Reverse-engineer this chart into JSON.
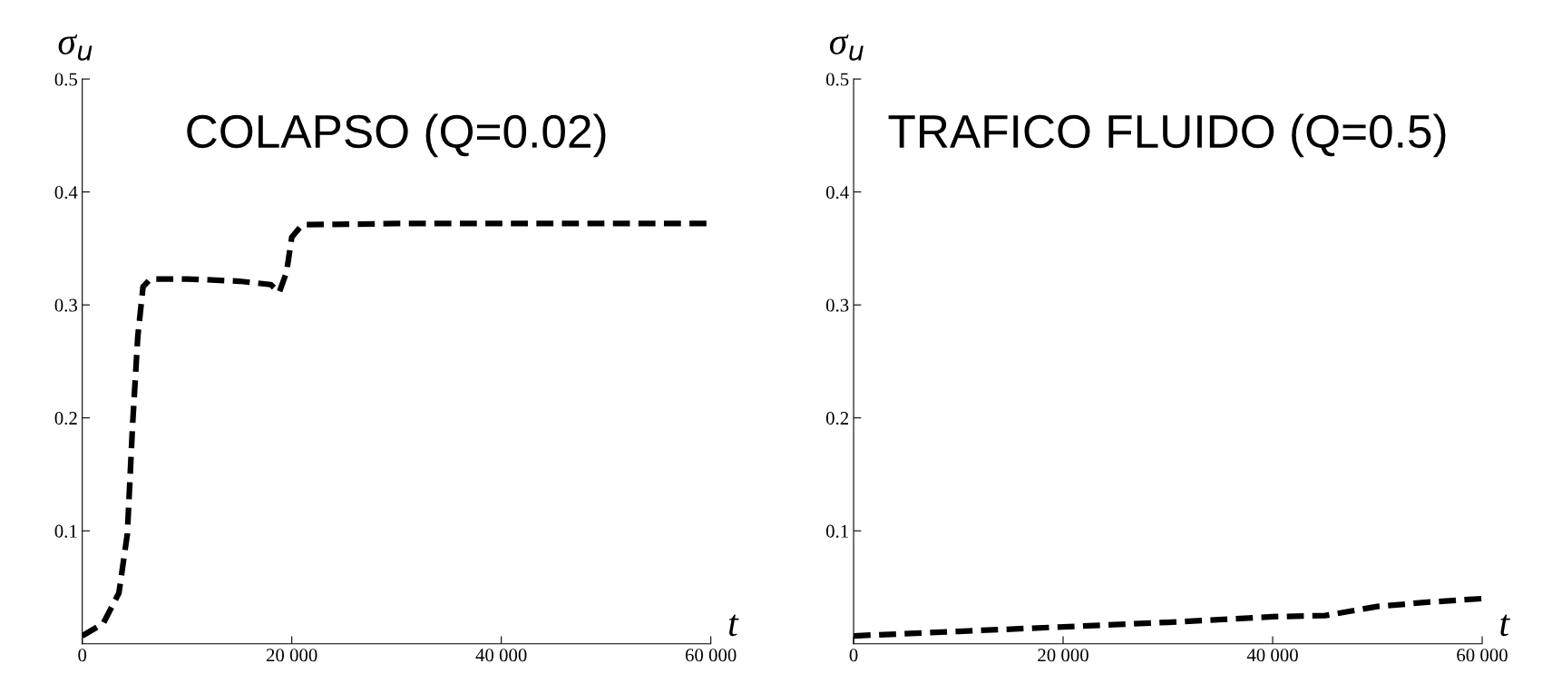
{
  "chart_data": [
    {
      "type": "line",
      "title": "COLAPSO (Q=0.02)",
      "xlabel": "t",
      "ylabel": "σ$_{u}$",
      "line_style": "dashed",
      "marker": "none",
      "grid": false,
      "legend": false,
      "xlim": [
        0,
        60000
      ],
      "ylim": [
        0,
        0.5
      ],
      "xticks": [
        0,
        {
          "value": 20000,
          "label": "20 000"
        },
        {
          "value": 40000,
          "label": "40 000"
        },
        {
          "value": 60000,
          "label": "60 000"
        }
      ],
      "yticks": [
        0.1,
        0.2,
        0.3,
        0.4,
        0.5
      ],
      "series": [
        {
          "color": "#000000",
          "x": [
            0,
            2000,
            3500,
            4300,
            4800,
            5300,
            5800,
            6500,
            10000,
            15000,
            18000,
            18800,
            19500,
            20000,
            21000,
            30000,
            60000
          ],
          "values": [
            0.007,
            0.018,
            0.045,
            0.097,
            0.193,
            0.272,
            0.316,
            0.323,
            0.323,
            0.321,
            0.318,
            0.311,
            0.329,
            0.36,
            0.371,
            0.372,
            0.372
          ]
        }
      ]
    },
    {
      "type": "line",
      "title": "TRAFICO FLUIDO (Q=0.5)",
      "xlabel": "t",
      "ylabel": "σ$_{u}$",
      "line_style": "dashed",
      "marker": "none",
      "grid": false,
      "legend": false,
      "xlim": [
        0,
        60000
      ],
      "ylim": [
        0,
        0.5
      ],
      "xticks": [
        0,
        {
          "value": 20000,
          "label": "20 000"
        },
        {
          "value": 40000,
          "label": "40 000"
        },
        {
          "value": 60000,
          "label": "60 000"
        }
      ],
      "yticks": [
        0.1,
        0.2,
        0.3,
        0.4,
        0.5
      ],
      "series": [
        {
          "color": "#000000",
          "x": [
            0,
            10000,
            20000,
            30000,
            40000,
            45000,
            50000,
            55000,
            60000
          ],
          "values": [
            0.007,
            0.011,
            0.015,
            0.019,
            0.024,
            0.025,
            0.033,
            0.037,
            0.04
          ]
        }
      ]
    }
  ]
}
